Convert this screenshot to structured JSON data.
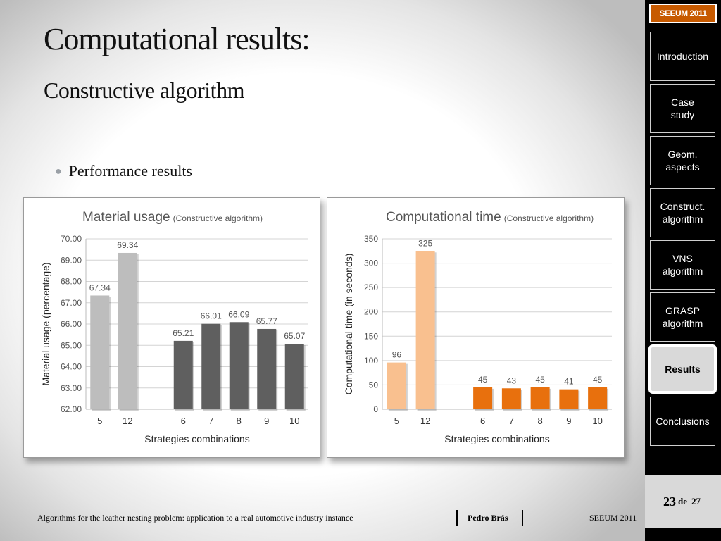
{
  "slide": {
    "title": "Computational results:",
    "subtitle": "Constructive algorithm",
    "bullet": "Performance results"
  },
  "sidebar": {
    "badge": "SEEUM 2011",
    "items": [
      {
        "label": "Introduction",
        "active": false
      },
      {
        "label": "Case\nstudy",
        "active": false
      },
      {
        "label": "Geom.\naspects",
        "active": false
      },
      {
        "label": "Construct.\nalgorithm",
        "active": false
      },
      {
        "label": "VNS\nalgorithm",
        "active": false
      },
      {
        "label": "GRASP\nalgorithm",
        "active": false
      },
      {
        "label": "Results",
        "active": true
      },
      {
        "label": "Conclusions",
        "active": false
      }
    ],
    "page_current": "23",
    "page_of": "de",
    "page_total": "27"
  },
  "footer": {
    "text": "Algorithms for the leather nesting problem: application to a real automotive industry instance",
    "author": "Pedro Brás",
    "event": "SEEUM 2011"
  },
  "colors": {
    "light_gray": "#bdbdbd",
    "dark_gray": "#5f5f5f",
    "light_orange": "#f9c08f",
    "dark_orange": "#e8700d",
    "badge": "#c75a00"
  },
  "chart_data": [
    {
      "type": "bar",
      "title": "Material usage",
      "subtitle": "(Constructive algorithm)",
      "xlabel": "Strategies combinations",
      "ylabel": "Material usage (percentage)",
      "ylim": [
        62.0,
        70.0
      ],
      "yticks": [
        "62.00",
        "63.00",
        "64.00",
        "65.00",
        "66.00",
        "67.00",
        "68.00",
        "69.00",
        "70.00"
      ],
      "grid": true,
      "categories": [
        "5",
        "12",
        "",
        "6",
        "7",
        "8",
        "9",
        "10"
      ],
      "values": [
        67.34,
        69.34,
        null,
        65.21,
        66.01,
        66.09,
        65.77,
        65.07
      ],
      "labels": [
        "67.34",
        "69.34",
        "",
        "65.21",
        "66.01",
        "66.09",
        "65.77",
        "65.07"
      ],
      "bar_colors": [
        "#bdbdbd",
        "#bdbdbd",
        "",
        "#5f5f5f",
        "#5f5f5f",
        "#5f5f5f",
        "#5f5f5f",
        "#5f5f5f"
      ]
    },
    {
      "type": "bar",
      "title": "Computational time",
      "subtitle": "(Constructive algorithm)",
      "xlabel": "Strategies combinations",
      "ylabel": "Computational time (in seconds)",
      "ylim": [
        0,
        350
      ],
      "yticks": [
        "0",
        "50",
        "100",
        "150",
        "200",
        "250",
        "300",
        "350"
      ],
      "grid": true,
      "categories": [
        "5",
        "12",
        "",
        "6",
        "7",
        "8",
        "9",
        "10"
      ],
      "values": [
        96,
        325,
        null,
        45,
        43,
        45,
        41,
        45
      ],
      "labels": [
        "96",
        "325",
        "",
        "45",
        "43",
        "45",
        "41",
        "45"
      ],
      "bar_colors": [
        "#f9c08f",
        "#f9c08f",
        "",
        "#e8700d",
        "#e8700d",
        "#e8700d",
        "#e8700d",
        "#e8700d"
      ]
    }
  ]
}
